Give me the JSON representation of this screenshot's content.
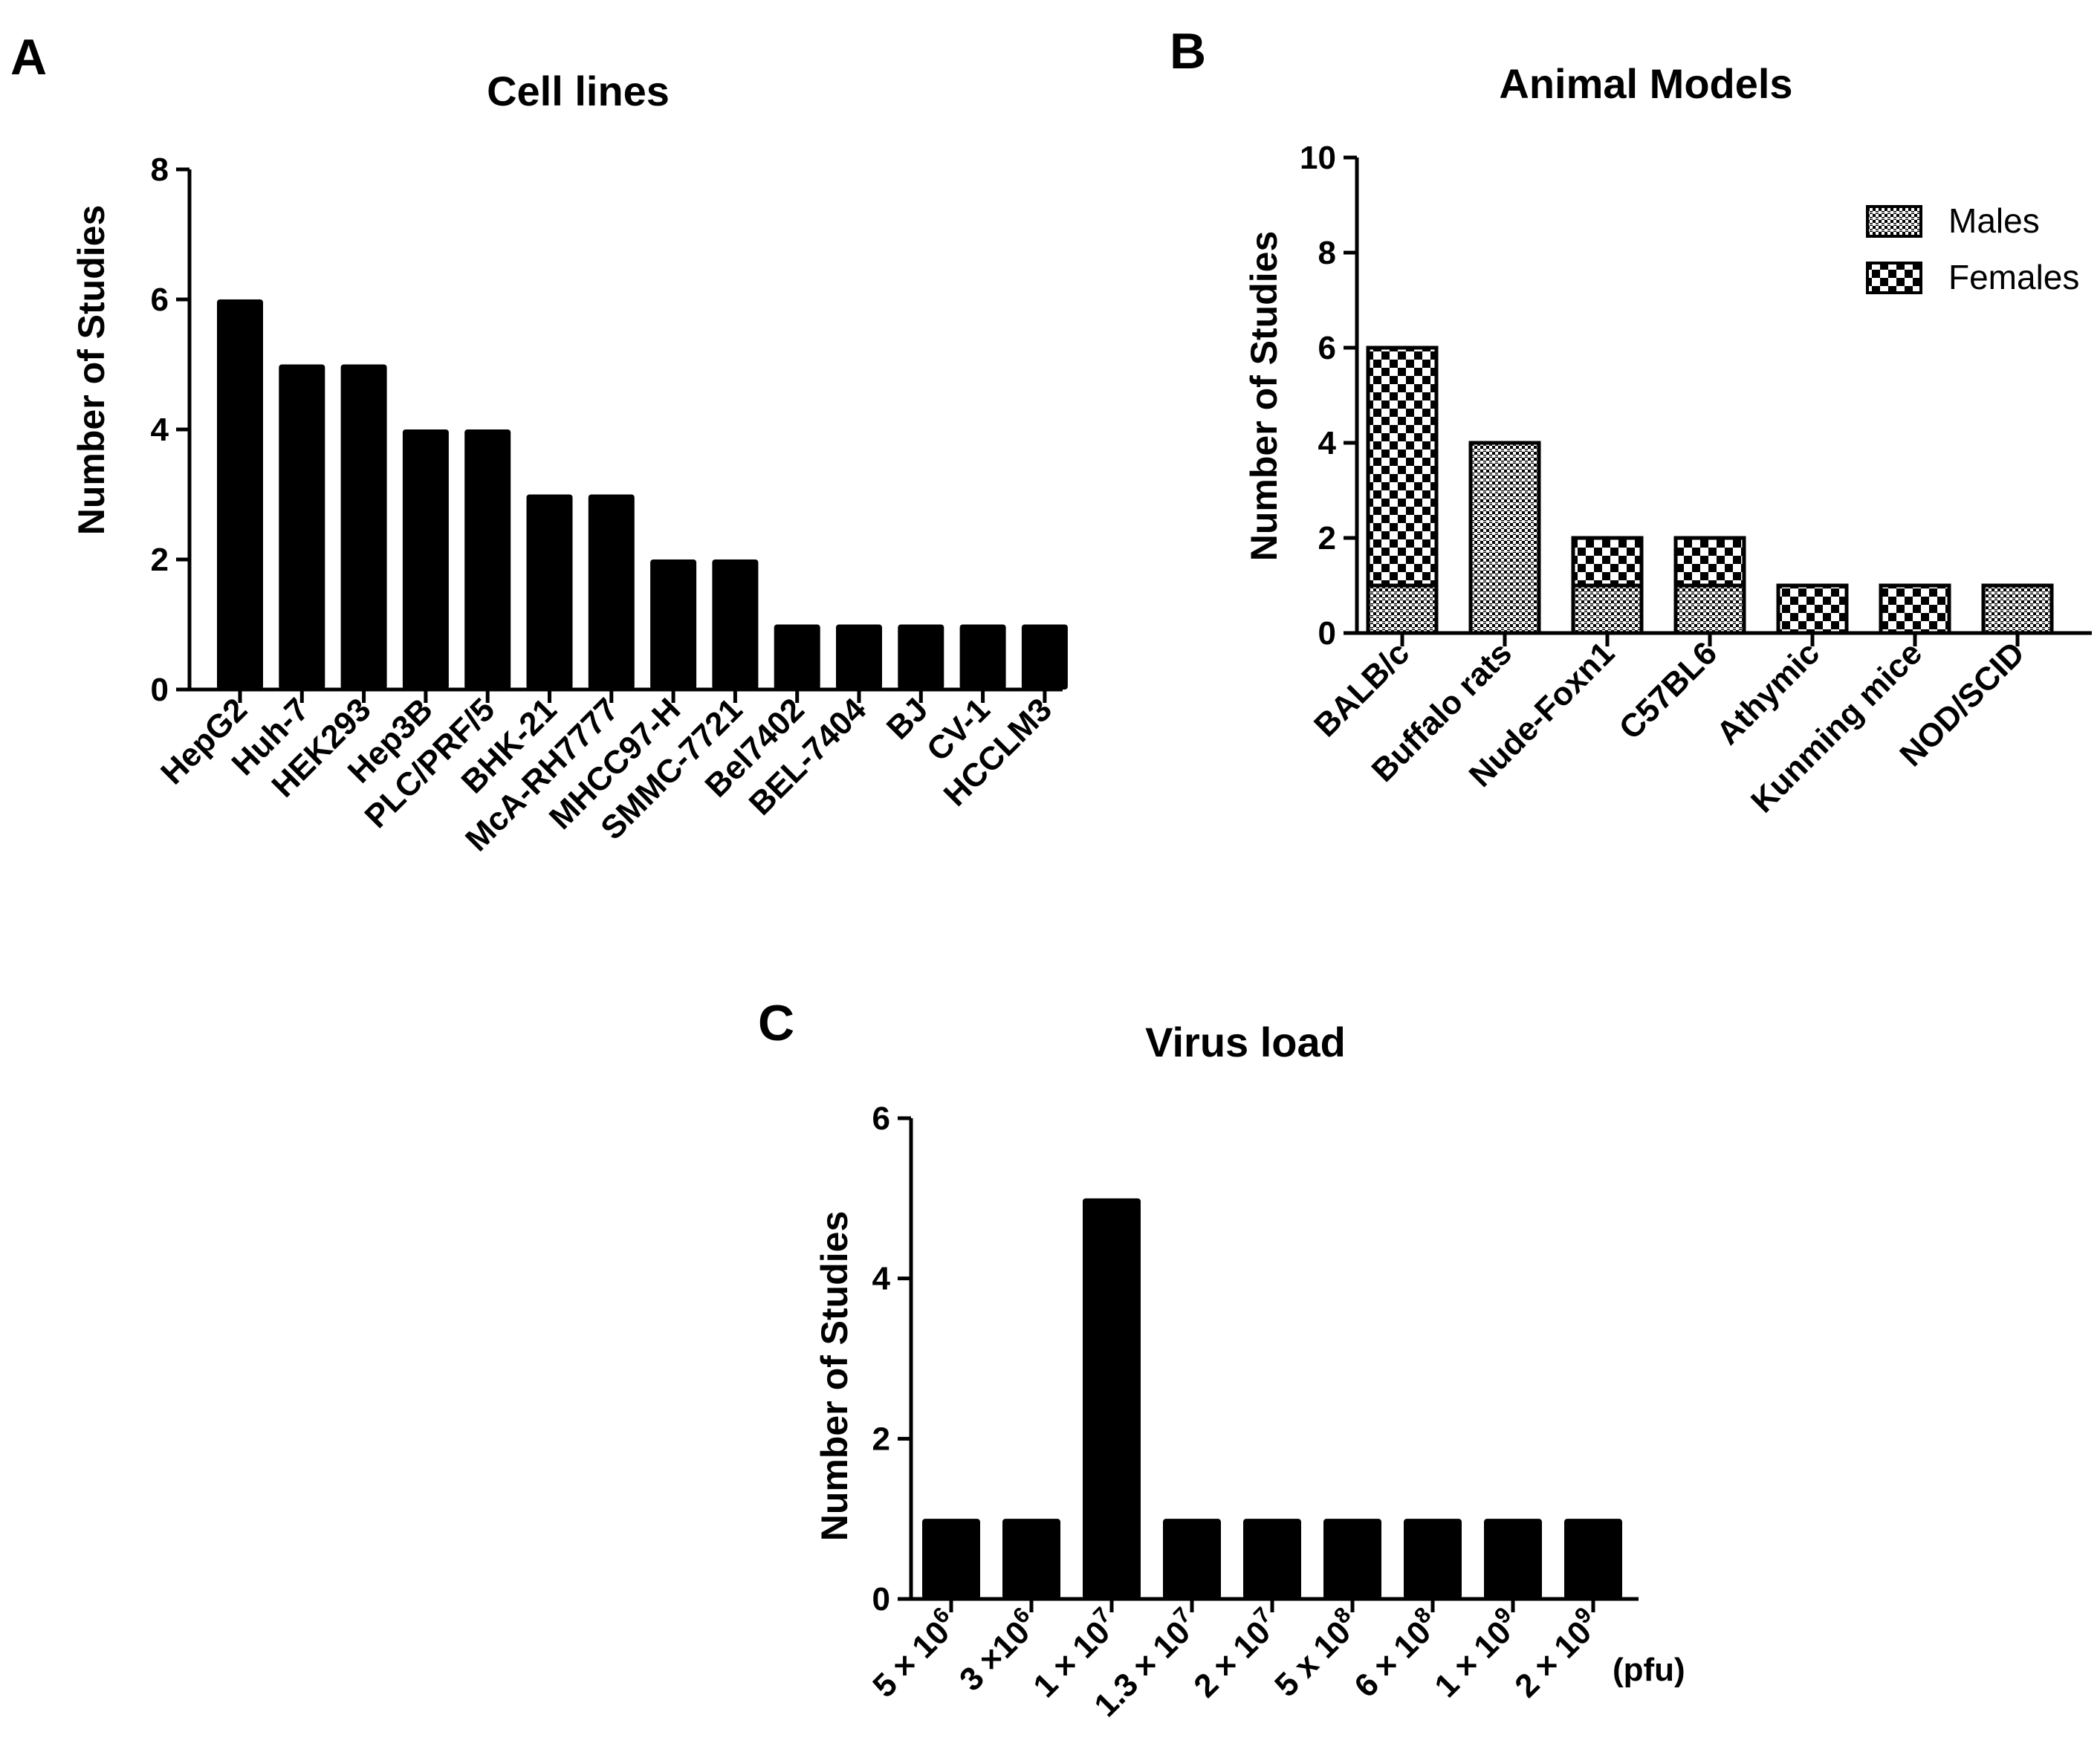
{
  "chart_data": [
    {
      "panel": "A",
      "type": "bar",
      "title": "Cell lines",
      "xlabel": "",
      "ylabel": "Number of Studies",
      "ylim": [
        0,
        8
      ],
      "yticks": [
        0,
        2,
        4,
        6,
        8
      ],
      "categories": [
        "HepG2",
        "Huh-7",
        "HEK293",
        "Hep3B",
        "PLC/PRF/5",
        "BHK-21",
        "McA-RH7777",
        "MHCC97-H",
        "SMMC-7721",
        "Bel7402",
        "BEL-7404",
        "BJ",
        "CV-1",
        "HCCLM3"
      ],
      "values": [
        6,
        5,
        5,
        4,
        4,
        3,
        3,
        2,
        2,
        1,
        1,
        1,
        1,
        1
      ],
      "colors": {
        "bar": "#000000"
      }
    },
    {
      "panel": "B",
      "type": "bar",
      "stacked": true,
      "title": "Animal Models",
      "xlabel": "",
      "ylabel": "Number of Studies",
      "ylim": [
        0,
        10
      ],
      "yticks": [
        0,
        2,
        4,
        6,
        8,
        10
      ],
      "legend_position": "top-right",
      "categories": [
        "BALB/c",
        "Buffalo rats",
        "Nude-Foxn1",
        "C57BL6",
        "Athymic",
        "Kunming mice",
        "NOD/SCID"
      ],
      "series": [
        {
          "name": "Males",
          "values": [
            1,
            4,
            1,
            1,
            0,
            0,
            1
          ]
        },
        {
          "name": "Females",
          "values": [
            5,
            0,
            1,
            1,
            1,
            1,
            0
          ]
        }
      ]
    },
    {
      "panel": "C",
      "type": "bar",
      "title": "Virus load",
      "xlabel": "(pfu)",
      "ylabel": "Number of Studies",
      "ylim": [
        0,
        6
      ],
      "yticks": [
        0,
        2,
        4,
        6
      ],
      "categories": [
        {
          "label": "5 × 10",
          "exp": "6"
        },
        {
          "label": "3 ×10",
          "exp": "6"
        },
        {
          "label": "1 × 10",
          "exp": "7"
        },
        {
          "label": "1.3 × 10",
          "exp": "7"
        },
        {
          "label": "2 × 10",
          "exp": "7"
        },
        {
          "label": "5 x 10",
          "exp": "8"
        },
        {
          "label": "6 × 10",
          "exp": "8"
        },
        {
          "label": "1 × 10",
          "exp": "9"
        },
        {
          "label": "2 × 10",
          "exp": "9"
        }
      ],
      "values": [
        1,
        1,
        5,
        1,
        1,
        1,
        1,
        1,
        1
      ],
      "colors": {
        "bar": "#000000"
      }
    }
  ]
}
